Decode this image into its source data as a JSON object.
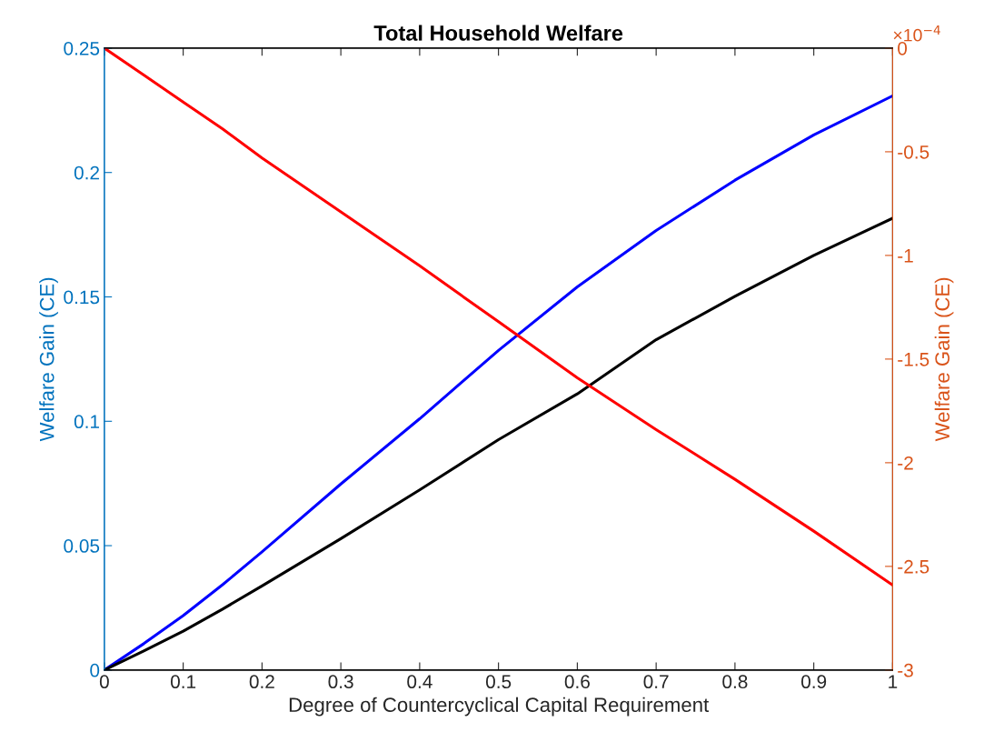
{
  "chart_data": {
    "type": "line",
    "title": "Total Household Welfare",
    "xlabel": "Degree of Countercyclical Capital Requirement",
    "ylabel": "Welfare Gain (CE)",
    "y2label": "Welfare Gain (CE)",
    "annotations": [
      "×10$^{−4}$"
    ],
    "x": [
      0,
      0.05,
      0.1,
      0.15,
      0.2,
      0.3,
      0.4,
      0.5,
      0.6,
      0.7,
      0.8,
      0.9,
      1
    ],
    "series": [
      {
        "color": "#0000ff",
        "values": [
          0,
          0.0106,
          0.0219,
          0.0343,
          0.0475,
          0.0748,
          0.101,
          0.1285,
          0.154,
          0.1767,
          0.1969,
          0.2151,
          0.2308
        ]
      },
      {
        "color": "#000000",
        "values": [
          0,
          0.0077,
          0.0156,
          0.0245,
          0.0338,
          0.0528,
          0.0724,
          0.0926,
          0.111,
          0.1328,
          0.1502,
          0.1667,
          0.1816
        ]
      },
      {
        "color": "#ff0000",
        "axis": "y2",
        "values": [
          0,
          -0.13,
          -0.26,
          -0.39,
          -0.53,
          -0.79,
          -1.05,
          -1.32,
          -1.59,
          -1.84,
          -2.08,
          -2.33,
          -2.59
        ]
      }
    ],
    "xlim": [
      0,
      1
    ],
    "xticks": [
      0,
      0.1,
      0.2,
      0.3,
      0.4,
      0.5,
      0.6,
      0.7,
      0.8,
      0.9,
      1
    ],
    "ylim": [
      0,
      0.25
    ],
    "yticks": [
      0,
      0.05,
      0.1,
      0.15,
      0.2,
      0.25
    ],
    "y2lim": [
      -3,
      0
    ],
    "y2ticks": [
      -3,
      -2.5,
      -2,
      -1.5,
      -1,
      -0.5,
      0
    ],
    "grid": false,
    "marker": "none",
    "line_style": "solid"
  }
}
